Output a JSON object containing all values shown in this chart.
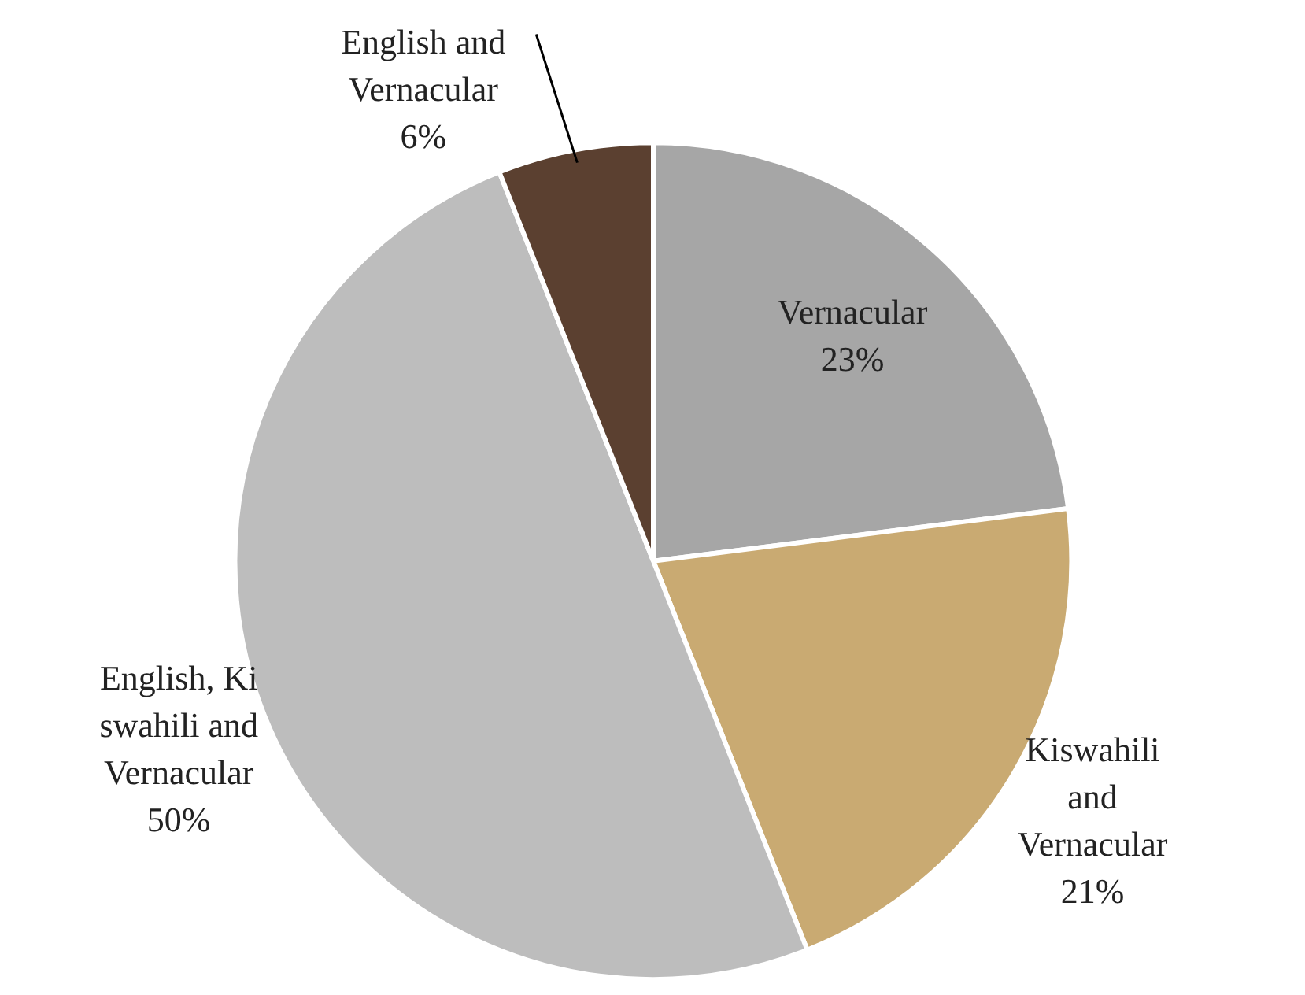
{
  "chart_data": {
    "type": "pie",
    "categories": [
      "Vernacular",
      "Kiswahili\nand\nVernacular",
      "English, Ki\nswahili and\nVernacular",
      "English and\nVernacular"
    ],
    "values": [
      23,
      21,
      50,
      6
    ],
    "colors": [
      "#a6a6a6",
      "#c9aa72",
      "#bdbdbd",
      "#5b4030"
    ],
    "value_labels": [
      "23%",
      "21%",
      "50%",
      "6%"
    ]
  }
}
